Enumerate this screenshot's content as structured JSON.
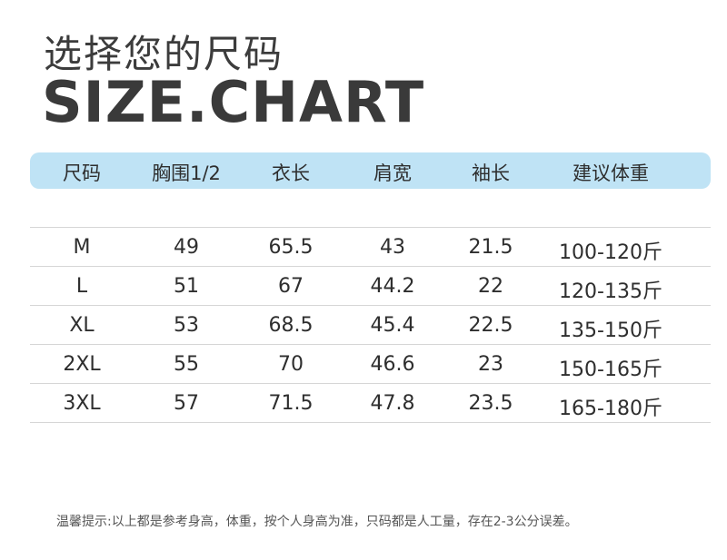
{
  "title_cn": "选择您的尺码",
  "title_en": "SIZE.CHART",
  "table": {
    "headers": [
      "尺码",
      "胸围1/2",
      "衣长",
      "肩宽",
      "袖长",
      "建议体重"
    ],
    "rows": [
      [
        "M",
        "49",
        "65.5",
        "43",
        "21.5",
        "100-120斤"
      ],
      [
        "L",
        "51",
        "67",
        "44.2",
        "22",
        "120-135斤"
      ],
      [
        "XL",
        "53",
        "68.5",
        "45.4",
        "22.5",
        "135-150斤"
      ],
      [
        "2XL",
        "55",
        "70",
        "46.6",
        "23",
        "150-165斤"
      ],
      [
        "3XL",
        "57",
        "71.5",
        "47.8",
        "23.5",
        "165-180斤"
      ]
    ]
  },
  "note": "温馨提示:以上都是参考身高，体重，按个人身高为准，只码都是人工量，存在2-3公分误差。",
  "colors": {
    "header_bg": "#bfe3f5",
    "text": "#333333"
  }
}
